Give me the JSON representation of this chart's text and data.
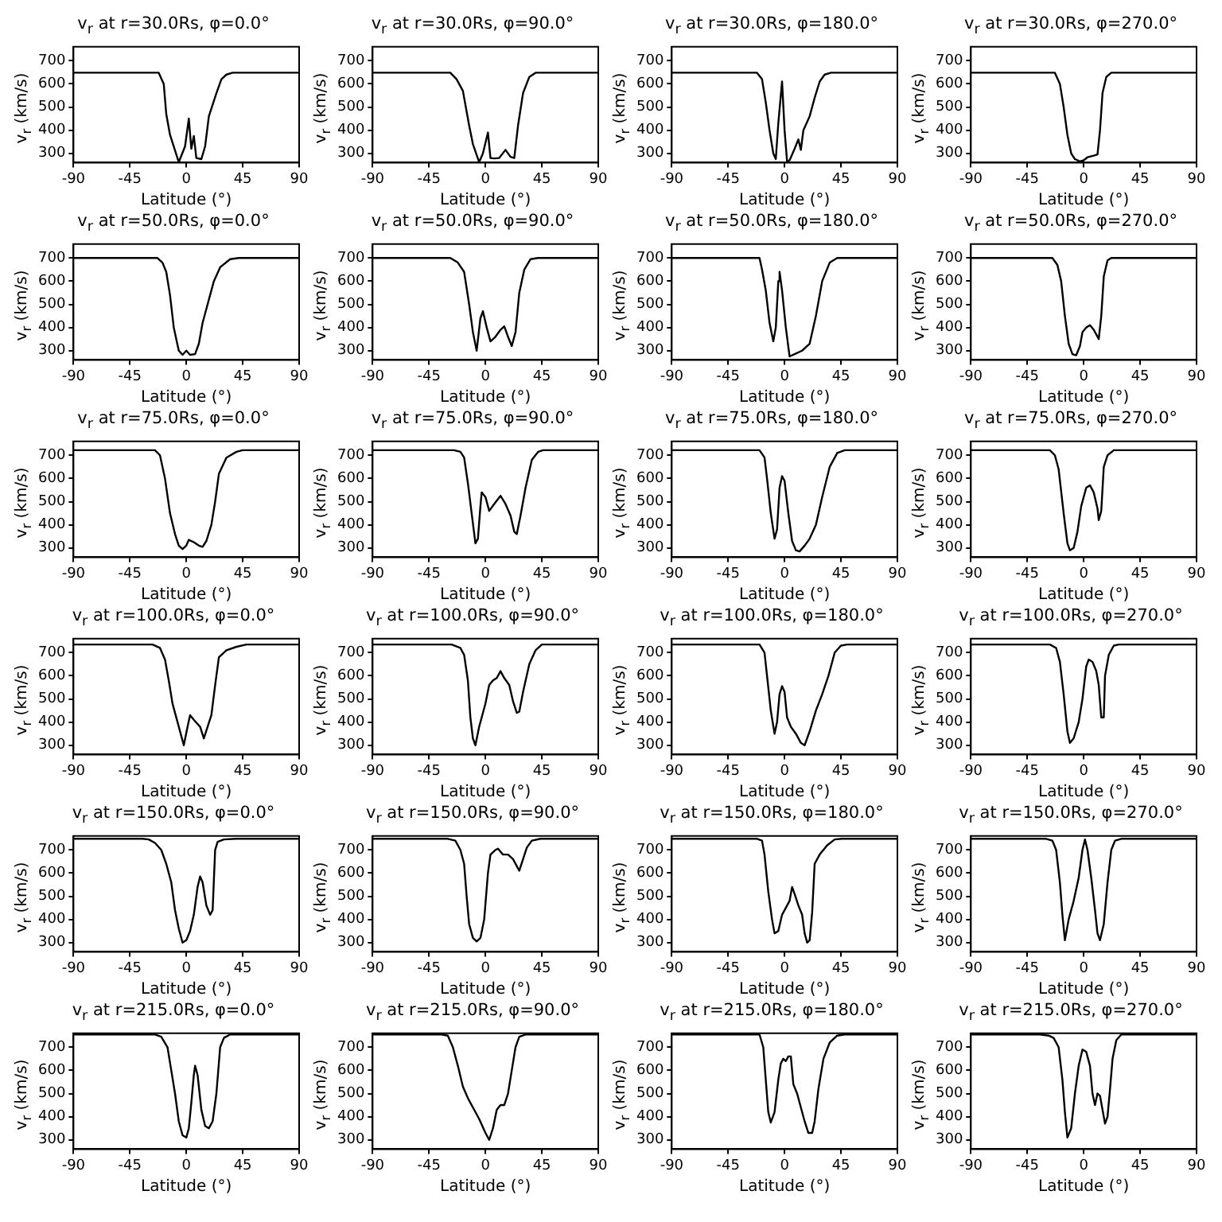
{
  "chart_data": [
    {
      "type": "line",
      "title": "v$_{r}$ at r=30.0Rs, φ=0.0°",
      "xlabel": "Latitude (°)",
      "ylabel": "v$_{r}$ (km/s)",
      "color": "#000000",
      "xlim": [
        -90,
        90
      ],
      "ylim": [
        260,
        760
      ],
      "xticks": [
        -90,
        -45,
        0,
        45,
        90
      ],
      "yticks": [
        300,
        400,
        500,
        600,
        700
      ],
      "x": [
        -90,
        -22,
        -18,
        -16,
        -13,
        -10,
        -6,
        -1,
        2,
        4,
        6,
        8,
        12,
        15,
        18,
        24,
        28,
        32,
        37,
        90
      ],
      "values": [
        648,
        648,
        600,
        470,
        380,
        330,
        262,
        330,
        450,
        320,
        375,
        280,
        275,
        330,
        460,
        560,
        620,
        640,
        648,
        648
      ]
    },
    {
      "type": "line",
      "title": "v$_{r}$ at r=30.0Rs, φ=90.0°",
      "xlabel": "Latitude (°)",
      "ylabel": "v$_{r}$ (km/s)",
      "color": "#000000",
      "xlim": [
        -90,
        90
      ],
      "ylim": [
        260,
        760
      ],
      "xticks": [
        -90,
        -45,
        0,
        45,
        90
      ],
      "yticks": [
        300,
        400,
        500,
        600,
        700
      ],
      "x": [
        -90,
        -28,
        -23,
        -18,
        -13,
        -10,
        -5,
        -2,
        2,
        4,
        7,
        11,
        16,
        20,
        23,
        26,
        30,
        35,
        40,
        90
      ],
      "values": [
        648,
        648,
        620,
        570,
        420,
        340,
        262,
        300,
        390,
        280,
        278,
        280,
        315,
        285,
        280,
        420,
        560,
        630,
        648,
        648
      ]
    },
    {
      "type": "line",
      "title": "v$_{r}$ at r=30.0Rs, φ=180.0°",
      "xlabel": "Latitude (°)",
      "ylabel": "v$_{r}$ (km/s)",
      "color": "#000000",
      "xlim": [
        -90,
        90
      ],
      "ylim": [
        260,
        760
      ],
      "xticks": [
        -90,
        -45,
        0,
        45,
        90
      ],
      "yticks": [
        300,
        400,
        500,
        600,
        700
      ],
      "x": [
        -90,
        -22,
        -18,
        -15,
        -12,
        -9,
        -7,
        -5,
        -2,
        0,
        2,
        4,
        8,
        11,
        13,
        15,
        20,
        24,
        28,
        32,
        37,
        90
      ],
      "values": [
        648,
        648,
        620,
        520,
        400,
        300,
        275,
        430,
        610,
        400,
        265,
        270,
        320,
        360,
        315,
        400,
        460,
        540,
        610,
        640,
        648,
        648
      ]
    },
    {
      "type": "line",
      "title": "v$_{r}$ at r=30.0Rs, φ=270.0°",
      "xlabel": "Latitude (°)",
      "ylabel": "v$_{r}$ (km/s)",
      "color": "#000000",
      "xlim": [
        -90,
        90
      ],
      "ylim": [
        260,
        760
      ],
      "xticks": [
        -90,
        -45,
        0,
        45,
        90
      ],
      "yticks": [
        300,
        400,
        500,
        600,
        700
      ],
      "x": [
        -90,
        -23,
        -19,
        -16,
        -13,
        -10,
        -7,
        -3,
        0,
        3,
        8,
        11,
        13,
        15,
        18,
        22,
        90
      ],
      "values": [
        648,
        648,
        600,
        500,
        380,
        300,
        275,
        265,
        270,
        283,
        290,
        295,
        400,
        560,
        630,
        648,
        648
      ]
    },
    {
      "type": "line",
      "title": "v$_{r}$ at r=50.0Rs, φ=0.0°",
      "xlabel": "Latitude (°)",
      "ylabel": "v$_{r}$ (km/s)",
      "color": "#000000",
      "xlim": [
        -90,
        90
      ],
      "ylim": [
        260,
        760
      ],
      "xticks": [
        -90,
        -45,
        0,
        45,
        90
      ],
      "yticks": [
        300,
        400,
        500,
        600,
        700
      ],
      "x": [
        -90,
        -23,
        -19,
        -16,
        -13,
        -10,
        -6,
        -3,
        0,
        3,
        7,
        10,
        13,
        18,
        22,
        27,
        35,
        42,
        90
      ],
      "values": [
        700,
        700,
        680,
        640,
        540,
        400,
        300,
        282,
        300,
        282,
        285,
        330,
        420,
        520,
        600,
        660,
        695,
        700,
        700
      ]
    },
    {
      "type": "line",
      "title": "v$_{r}$ at r=50.0Rs, φ=90.0°",
      "xlabel": "Latitude (°)",
      "ylabel": "v$_{r}$ (km/s)",
      "color": "#000000",
      "xlim": [
        -90,
        90
      ],
      "ylim": [
        260,
        760
      ],
      "xticks": [
        -90,
        -45,
        0,
        45,
        90
      ],
      "yticks": [
        300,
        400,
        500,
        600,
        700
      ],
      "x": [
        -90,
        -28,
        -22,
        -17,
        -13,
        -10,
        -7,
        -4,
        -2,
        1,
        4,
        8,
        12,
        15,
        18,
        21,
        24,
        27,
        31,
        36,
        42,
        90
      ],
      "values": [
        700,
        700,
        680,
        640,
        500,
        380,
        300,
        440,
        470,
        400,
        340,
        360,
        390,
        405,
        360,
        320,
        380,
        550,
        650,
        695,
        700,
        700
      ]
    },
    {
      "type": "line",
      "title": "v$_{r}$ at r=50.0Rs, φ=180.0°",
      "xlabel": "Latitude (°)",
      "ylabel": "v$_{r}$ (km/s)",
      "color": "#000000",
      "xlim": [
        -90,
        90
      ],
      "ylim": [
        260,
        760
      ],
      "xticks": [
        -90,
        -45,
        0,
        45,
        90
      ],
      "yticks": [
        300,
        400,
        500,
        600,
        700
      ],
      "x": [
        -90,
        -20,
        -18,
        -15,
        -12,
        -9,
        -7,
        -5,
        -4,
        -2,
        1,
        4,
        8,
        14,
        20,
        25,
        30,
        36,
        42,
        90
      ],
      "values": [
        700,
        700,
        650,
        560,
        420,
        340,
        400,
        600,
        640,
        560,
        400,
        275,
        285,
        300,
        330,
        450,
        600,
        680,
        700,
        700
      ]
    },
    {
      "type": "line",
      "title": "v$_{r}$ at r=50.0Rs, φ=270.0°",
      "xlabel": "Latitude (°)",
      "ylabel": "v$_{r}$ (km/s)",
      "color": "#000000",
      "xlim": [
        -90,
        90
      ],
      "ylim": [
        260,
        760
      ],
      "xticks": [
        -90,
        -45,
        0,
        45,
        90
      ],
      "yticks": [
        300,
        400,
        500,
        600,
        700
      ],
      "x": [
        -90,
        -25,
        -21,
        -18,
        -15,
        -12,
        -9,
        -6,
        -3,
        -1,
        2,
        5,
        8,
        12,
        14,
        16,
        19,
        22,
        90
      ],
      "values": [
        700,
        700,
        670,
        600,
        450,
        330,
        285,
        280,
        320,
        380,
        400,
        410,
        390,
        350,
        450,
        620,
        690,
        700,
        700
      ]
    },
    {
      "type": "line",
      "title": "v$_{r}$ at r=75.0Rs, φ=0.0°",
      "xlabel": "Latitude (°)",
      "ylabel": "v$_{r}$ (km/s)",
      "color": "#000000",
      "xlim": [
        -90,
        90
      ],
      "ylim": [
        260,
        760
      ],
      "xticks": [
        -90,
        -45,
        0,
        45,
        90
      ],
      "yticks": [
        300,
        400,
        500,
        600,
        700
      ],
      "x": [
        -90,
        -25,
        -21,
        -17,
        -13,
        -9,
        -6,
        -3,
        0,
        2,
        6,
        10,
        13,
        16,
        20,
        23,
        26,
        32,
        40,
        45,
        90
      ],
      "values": [
        722,
        722,
        700,
        600,
        450,
        360,
        310,
        295,
        310,
        335,
        325,
        310,
        305,
        330,
        400,
        500,
        620,
        690,
        715,
        722,
        722
      ]
    },
    {
      "type": "line",
      "title": "v$_{r}$ at r=75.0Rs, φ=90.0°",
      "xlabel": "Latitude (°)",
      "ylabel": "v$_{r}$ (km/s)",
      "color": "#000000",
      "xlim": [
        -90,
        90
      ],
      "ylim": [
        260,
        760
      ],
      "xticks": [
        -90,
        -45,
        0,
        45,
        90
      ],
      "yticks": [
        300,
        400,
        500,
        600,
        700
      ],
      "x": [
        -90,
        -25,
        -20,
        -17,
        -14,
        -11,
        -8,
        -6,
        -4,
        -3,
        0,
        3,
        7,
        12,
        16,
        20,
        23,
        25,
        28,
        32,
        37,
        42,
        46,
        90
      ],
      "values": [
        722,
        722,
        715,
        690,
        580,
        450,
        320,
        340,
        480,
        540,
        520,
        460,
        490,
        525,
        490,
        440,
        370,
        360,
        440,
        560,
        680,
        715,
        722,
        722
      ]
    },
    {
      "type": "line",
      "title": "v$_{r}$ at r=75.0Rs, φ=180.0°",
      "xlabel": "Latitude (°)",
      "ylabel": "v$_{r}$ (km/s)",
      "color": "#000000",
      "xlim": [
        -90,
        90
      ],
      "ylim": [
        260,
        760
      ],
      "xticks": [
        -90,
        -45,
        0,
        45,
        90
      ],
      "yticks": [
        300,
        400,
        500,
        600,
        700
      ],
      "x": [
        -90,
        -20,
        -16,
        -14,
        -11,
        -8,
        -6,
        -4,
        -2,
        0,
        3,
        6,
        9,
        12,
        16,
        20,
        25,
        30,
        36,
        42,
        48,
        90
      ],
      "values": [
        722,
        722,
        690,
        600,
        450,
        340,
        380,
        560,
        610,
        590,
        450,
        330,
        290,
        285,
        310,
        340,
        400,
        520,
        650,
        710,
        722,
        722
      ]
    },
    {
      "type": "line",
      "title": "v$_{r}$ at r=75.0Rs, φ=270.0°",
      "xlabel": "Latitude (°)",
      "ylabel": "v$_{r}$ (km/s)",
      "color": "#000000",
      "xlim": [
        -90,
        90
      ],
      "ylim": [
        260,
        760
      ],
      "xticks": [
        -90,
        -45,
        0,
        45,
        90
      ],
      "yticks": [
        300,
        400,
        500,
        600,
        700
      ],
      "x": [
        -90,
        -27,
        -23,
        -20,
        -16,
        -13,
        -11,
        -8,
        -5,
        -2,
        2,
        5,
        8,
        11,
        12,
        14,
        16,
        19,
        24,
        90
      ],
      "values": [
        722,
        722,
        700,
        640,
        450,
        320,
        290,
        300,
        370,
        480,
        560,
        570,
        540,
        470,
        420,
        460,
        650,
        700,
        722,
        722
      ]
    },
    {
      "type": "line",
      "title": "v$_{r}$ at r=100.0Rs, φ=0.0°",
      "xlabel": "Latitude (°)",
      "ylabel": "v$_{r}$ (km/s)",
      "color": "#000000",
      "xlim": [
        -90,
        90
      ],
      "ylim": [
        260,
        760
      ],
      "xticks": [
        -90,
        -45,
        0,
        45,
        90
      ],
      "yticks": [
        300,
        400,
        500,
        600,
        700
      ],
      "x": [
        -90,
        -27,
        -21,
        -17,
        -14,
        -11,
        -7,
        -4,
        -2,
        1,
        3,
        6,
        11,
        14,
        17,
        20,
        23,
        26,
        32,
        40,
        48,
        90
      ],
      "values": [
        735,
        735,
        720,
        670,
        580,
        480,
        400,
        340,
        300,
        380,
        430,
        410,
        380,
        330,
        380,
        430,
        560,
        680,
        710,
        725,
        735,
        735
      ]
    },
    {
      "type": "line",
      "title": "v$_{r}$ at r=100.0Rs, φ=90.0°",
      "xlabel": "Latitude (°)",
      "ylabel": "v$_{r}$ (km/s)",
      "color": "#000000",
      "xlim": [
        -90,
        90
      ],
      "ylim": [
        260,
        760
      ],
      "xticks": [
        -90,
        -45,
        0,
        45,
        90
      ],
      "yticks": [
        300,
        400,
        500,
        600,
        700
      ],
      "x": [
        -90,
        -27,
        -20,
        -17,
        -14,
        -12,
        -10,
        -8,
        -5,
        -2,
        0,
        3,
        6,
        9,
        12,
        15,
        19,
        22,
        25,
        27,
        30,
        35,
        40,
        45,
        90
      ],
      "values": [
        735,
        735,
        720,
        690,
        580,
        420,
        330,
        300,
        380,
        440,
        480,
        560,
        580,
        590,
        620,
        590,
        560,
        490,
        440,
        445,
        530,
        650,
        710,
        735,
        735
      ]
    },
    {
      "type": "line",
      "title": "v$_{r}$ at r=100.0Rs, φ=180.0°",
      "xlabel": "Latitude (°)",
      "ylabel": "v$_{r}$ (km/s)",
      "color": "#000000",
      "xlim": [
        -90,
        90
      ],
      "ylim": [
        260,
        760
      ],
      "xticks": [
        -90,
        -45,
        0,
        45,
        90
      ],
      "yticks": [
        300,
        400,
        500,
        600,
        700
      ],
      "x": [
        -90,
        -20,
        -16,
        -14,
        -11,
        -8,
        -6,
        -4,
        -2,
        0,
        2,
        5,
        9,
        13,
        16,
        20,
        25,
        30,
        35,
        40,
        45,
        50,
        90
      ],
      "values": [
        735,
        735,
        700,
        600,
        450,
        350,
        400,
        520,
        555,
        530,
        420,
        380,
        350,
        310,
        300,
        360,
        450,
        520,
        600,
        700,
        730,
        735,
        735
      ]
    },
    {
      "type": "line",
      "title": "v$_{r}$ at r=100.0Rs, φ=270.0°",
      "xlabel": "Latitude (°)",
      "ylabel": "v$_{r}$ (km/s)",
      "color": "#000000",
      "xlim": [
        -90,
        90
      ],
      "ylim": [
        260,
        760
      ],
      "xticks": [
        -90,
        -45,
        0,
        45,
        90
      ],
      "yticks": [
        300,
        400,
        500,
        600,
        700
      ],
      "x": [
        -90,
        -27,
        -22,
        -19,
        -16,
        -13,
        -11,
        -8,
        -4,
        -1,
        2,
        4,
        7,
        10,
        12,
        14,
        16,
        17,
        20,
        24,
        28,
        90
      ],
      "values": [
        735,
        735,
        720,
        660,
        520,
        360,
        310,
        330,
        400,
        500,
        640,
        670,
        660,
        620,
        560,
        420,
        420,
        600,
        690,
        730,
        735,
        735
      ]
    },
    {
      "type": "line",
      "title": "v$_{r}$ at r=150.0Rs, φ=0.0°",
      "xlabel": "Latitude (°)",
      "ylabel": "v$_{r}$ (km/s)",
      "color": "#000000",
      "xlim": [
        -90,
        90
      ],
      "ylim": [
        260,
        760
      ],
      "xticks": [
        -90,
        -45,
        0,
        45,
        90
      ],
      "yticks": [
        300,
        400,
        500,
        600,
        700
      ],
      "x": [
        -90,
        -35,
        -30,
        -25,
        -20,
        -16,
        -12,
        -9,
        -6,
        -3,
        0,
        3,
        6,
        9,
        11,
        13,
        16,
        19,
        21,
        23,
        25,
        30,
        40,
        90
      ],
      "values": [
        748,
        748,
        745,
        730,
        700,
        640,
        560,
        440,
        360,
        300,
        310,
        350,
        420,
        540,
        585,
        560,
        460,
        420,
        440,
        700,
        735,
        745,
        748,
        748
      ]
    },
    {
      "type": "line",
      "title": "v$_{r}$ at r=150.0Rs, φ=90.0°",
      "xlabel": "Latitude (°)",
      "ylabel": "v$_{r}$ (km/s)",
      "color": "#000000",
      "xlim": [
        -90,
        90
      ],
      "ylim": [
        260,
        760
      ],
      "xticks": [
        -90,
        -45,
        0,
        45,
        90
      ],
      "yticks": [
        300,
        400,
        500,
        600,
        700
      ],
      "x": [
        -90,
        -30,
        -24,
        -20,
        -17,
        -15,
        -13,
        -10,
        -7,
        -4,
        -1,
        2,
        4,
        8,
        10,
        14,
        18,
        22,
        27,
        30,
        33,
        37,
        44,
        90
      ],
      "values": [
        748,
        748,
        740,
        700,
        640,
        500,
        380,
        320,
        305,
        320,
        400,
        600,
        680,
        700,
        705,
        680,
        680,
        660,
        610,
        660,
        710,
        740,
        748,
        748
      ]
    },
    {
      "type": "line",
      "title": "v$_{r}$ at r=150.0Rs, φ=180.0°",
      "xlabel": "Latitude (°)",
      "ylabel": "v$_{r}$ (km/s)",
      "color": "#000000",
      "xlim": [
        -90,
        90
      ],
      "ylim": [
        260,
        760
      ],
      "xticks": [
        -90,
        -45,
        0,
        45,
        90
      ],
      "yticks": [
        300,
        400,
        500,
        600,
        700
      ],
      "x": [
        -90,
        -22,
        -18,
        -16,
        -13,
        -10,
        -8,
        -5,
        -2,
        2,
        4,
        6,
        8,
        11,
        14,
        16,
        18,
        20,
        22,
        24,
        28,
        34,
        40,
        46,
        90
      ],
      "values": [
        748,
        748,
        740,
        680,
        520,
        400,
        340,
        350,
        420,
        460,
        480,
        540,
        510,
        460,
        420,
        340,
        300,
        310,
        430,
        640,
        680,
        720,
        745,
        748,
        748
      ]
    },
    {
      "type": "line",
      "title": "v$_{r}$ at r=150.0Rs, φ=270.0°",
      "xlabel": "Latitude (°)",
      "ylabel": "v$_{r}$ (km/s)",
      "color": "#000000",
      "xlim": [
        -90,
        90
      ],
      "ylim": [
        260,
        760
      ],
      "xticks": [
        -90,
        -45,
        0,
        45,
        90
      ],
      "yticks": [
        300,
        400,
        500,
        600,
        700
      ],
      "x": [
        -90,
        -30,
        -25,
        -22,
        -19,
        -17,
        -15,
        -12,
        -8,
        -4,
        -1,
        1,
        3,
        6,
        9,
        11,
        13,
        16,
        19,
        22,
        25,
        30,
        90
      ],
      "values": [
        748,
        748,
        740,
        700,
        560,
        420,
        310,
        400,
        480,
        580,
        700,
        745,
        700,
        580,
        440,
        340,
        310,
        380,
        560,
        700,
        740,
        748,
        748
      ]
    },
    {
      "type": "line",
      "title": "v$_{r}$ at r=215.0Rs, φ=0.0°",
      "xlabel": "Latitude (°)",
      "ylabel": "v$_{r}$ (km/s)",
      "color": "#000000",
      "xlim": [
        -90,
        90
      ],
      "ylim": [
        260,
        760
      ],
      "xticks": [
        -90,
        -45,
        0,
        45,
        90
      ],
      "yticks": [
        300,
        400,
        500,
        600,
        700
      ],
      "x": [
        -90,
        -25,
        -20,
        -15,
        -12,
        -9,
        -6,
        -3,
        0,
        2,
        4,
        6,
        7,
        9,
        12,
        15,
        18,
        21,
        24,
        27,
        30,
        35,
        90
      ],
      "values": [
        755,
        755,
        745,
        700,
        600,
        500,
        380,
        320,
        310,
        350,
        460,
        580,
        620,
        580,
        430,
        360,
        350,
        380,
        500,
        700,
        740,
        755,
        755
      ]
    },
    {
      "type": "line",
      "title": "v$_{r}$ at r=215.0Rs, φ=90.0°",
      "xlabel": "Latitude (°)",
      "ylabel": "v$_{r}$ (km/s)",
      "color": "#000000",
      "xlim": [
        -90,
        90
      ],
      "ylim": [
        260,
        760
      ],
      "xticks": [
        -90,
        -45,
        0,
        45,
        90
      ],
      "yticks": [
        300,
        400,
        500,
        600,
        700
      ],
      "x": [
        -90,
        -35,
        -30,
        -26,
        -22,
        -18,
        -14,
        -10,
        -5,
        0,
        3,
        6,
        9,
        12,
        15,
        18,
        21,
        24,
        27,
        32,
        90
      ],
      "values": [
        755,
        755,
        750,
        700,
        620,
        530,
        480,
        440,
        390,
        330,
        300,
        350,
        430,
        450,
        450,
        500,
        600,
        700,
        745,
        755,
        755
      ]
    },
    {
      "type": "line",
      "title": "v$_{r}$ at r=215.0Rs, φ=180.0°",
      "xlabel": "Latitude (°)",
      "ylabel": "v$_{r}$ (km/s)",
      "color": "#000000",
      "xlim": [
        -90,
        90
      ],
      "ylim": [
        260,
        760
      ],
      "xticks": [
        -90,
        -45,
        0,
        45,
        90
      ],
      "yticks": [
        300,
        400,
        500,
        600,
        700
      ],
      "x": [
        -90,
        -20,
        -17,
        -15,
        -13,
        -11,
        -8,
        -5,
        -3,
        -1,
        1,
        3,
        5,
        7,
        10,
        13,
        16,
        19,
        22,
        24,
        27,
        31,
        36,
        42,
        48,
        90
      ],
      "values": [
        755,
        755,
        700,
        560,
        420,
        375,
        420,
        560,
        630,
        650,
        640,
        660,
        660,
        540,
        500,
        440,
        380,
        330,
        330,
        380,
        520,
        650,
        720,
        750,
        755,
        755
      ]
    },
    {
      "type": "line",
      "title": "v$_{r}$ at r=215.0Rs, φ=270.0°",
      "xlabel": "Latitude (°)",
      "ylabel": "v$_{r}$ (km/s)",
      "color": "#000000",
      "xlim": [
        -90,
        90
      ],
      "ylim": [
        260,
        760
      ],
      "xticks": [
        -90,
        -45,
        0,
        45,
        90
      ],
      "yticks": [
        300,
        400,
        500,
        600,
        700
      ],
      "x": [
        -90,
        -35,
        -28,
        -24,
        -20,
        -17,
        -15,
        -13,
        -10,
        -7,
        -4,
        -1,
        2,
        5,
        7,
        9,
        11,
        13,
        15,
        17,
        19,
        21,
        23,
        26,
        30,
        90
      ],
      "values": [
        755,
        755,
        750,
        740,
        700,
        560,
        420,
        310,
        350,
        500,
        620,
        690,
        680,
        620,
        500,
        450,
        500,
        490,
        430,
        370,
        400,
        520,
        650,
        730,
        755,
        755
      ]
    }
  ]
}
